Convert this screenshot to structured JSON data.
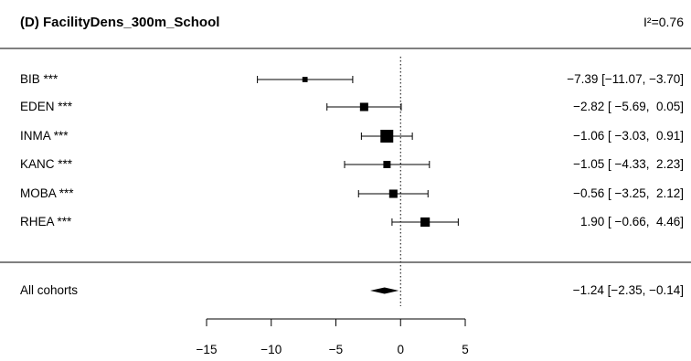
{
  "header": {
    "title": "(D) FacilityDens_300m_School",
    "i2": "I²=0.76"
  },
  "chart_data": {
    "type": "forest",
    "title": "(D) FacilityDens_300m_School",
    "heterogeneity": "I²=0.76",
    "xlim": [
      -15,
      5
    ],
    "xticks": [
      -15,
      -10,
      -5,
      0,
      5
    ],
    "xtick_labels": [
      "−15",
      "−10",
      "−5",
      "0",
      "5"
    ],
    "reference_line": 0,
    "studies": [
      {
        "label": "BIB ***",
        "est": -7.39,
        "lo": -11.07,
        "hi": -3.7,
        "weight": 0.25,
        "ci_text": "−7.39 [−11.07, −3.70]"
      },
      {
        "label": "EDEN ***",
        "est": -2.82,
        "lo": -5.69,
        "hi": 0.05,
        "weight": 0.55,
        "ci_text": "−2.82 [ −5.69,  0.05]"
      },
      {
        "label": "INMA ***",
        "est": -1.06,
        "lo": -3.03,
        "hi": 0.91,
        "weight": 1.0,
        "ci_text": "−1.06 [ −3.03,  0.91]"
      },
      {
        "label": "KANC ***",
        "est": -1.05,
        "lo": -4.33,
        "hi": 2.23,
        "weight": 0.45,
        "ci_text": "−1.05 [ −4.33,  2.23]"
      },
      {
        "label": "MOBA ***",
        "est": -0.56,
        "lo": -3.25,
        "hi": 2.12,
        "weight": 0.55,
        "ci_text": "−0.56 [ −3.25,  2.12]"
      },
      {
        "label": "RHEA ***",
        "est": 1.9,
        "lo": -0.66,
        "hi": 4.46,
        "weight": 0.65,
        "ci_text": "1.90 [ −0.66,  4.46]"
      }
    ],
    "summary": {
      "label": "All cohorts",
      "est": -1.24,
      "lo": -2.35,
      "hi": -0.14,
      "ci_text": "−1.24 [−2.35, −0.14]"
    }
  }
}
